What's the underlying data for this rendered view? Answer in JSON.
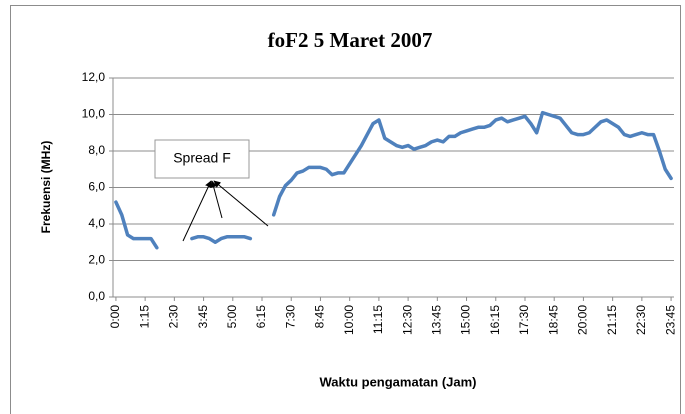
{
  "chart_data": {
    "type": "line",
    "title": "foF2 5 Maret 2007",
    "xlabel": "Waktu pengamatan (Jam)",
    "ylabel": "Frekuensi (MHz)",
    "annotation": "Spread F",
    "categories": [
      "0:00",
      null,
      null,
      null,
      null,
      "1:15",
      null,
      null,
      null,
      null,
      "2:30",
      null,
      null,
      null,
      null,
      "3:45",
      null,
      null,
      null,
      null,
      "5:00",
      null,
      null,
      null,
      null,
      "6:15",
      null,
      null,
      null,
      null,
      "7:30",
      null,
      null,
      null,
      null,
      "8:45",
      null,
      null,
      null,
      null,
      "10:00",
      null,
      null,
      null,
      null,
      "11:15",
      null,
      null,
      null,
      null,
      "12:30",
      null,
      null,
      null,
      null,
      "13:45",
      null,
      null,
      null,
      null,
      "15:00",
      null,
      null,
      null,
      null,
      "16:15",
      null,
      null,
      null,
      null,
      "17:30",
      null,
      null,
      null,
      null,
      "18:45",
      null,
      null,
      null,
      null,
      "20:00",
      null,
      null,
      null,
      null,
      "21:15",
      null,
      null,
      null,
      null,
      "22:30",
      null,
      null,
      null,
      null,
      "23:45"
    ],
    "series": [
      {
        "name": "foF2",
        "color": "#4f81bd",
        "values": [
          5.2,
          4.5,
          3.4,
          3.2,
          3.2,
          3.2,
          3.2,
          2.7,
          null,
          null,
          null,
          null,
          null,
          3.2,
          3.3,
          3.3,
          3.2,
          3.0,
          3.2,
          3.3,
          3.3,
          3.3,
          3.3,
          3.2,
          null,
          null,
          null,
          4.5,
          5.5,
          6.1,
          6.4,
          6.8,
          6.9,
          7.1,
          7.1,
          7.1,
          7.0,
          6.7,
          6.8,
          6.8,
          7.3,
          7.8,
          8.3,
          8.9,
          9.5,
          9.7,
          8.7,
          8.5,
          8.3,
          8.2,
          8.3,
          8.1,
          8.2,
          8.3,
          8.5,
          8.6,
          8.5,
          8.8,
          8.8,
          9.0,
          9.1,
          9.2,
          9.3,
          9.3,
          9.4,
          9.7,
          9.8,
          9.6,
          9.7,
          9.8,
          9.9,
          9.5,
          9.0,
          10.1,
          10.0,
          9.9,
          9.8,
          9.4,
          9.0,
          8.9,
          8.9,
          9.0,
          9.3,
          9.6,
          9.7,
          9.5,
          9.3,
          8.9,
          8.8,
          8.9,
          9.0,
          8.9,
          8.9,
          8.0,
          7.0,
          6.5
        ]
      }
    ],
    "ylim": [
      0,
      12
    ],
    "yticks": [
      {
        "value": 0,
        "label": "0,0"
      },
      {
        "value": 2,
        "label": "2,0"
      },
      {
        "value": 4,
        "label": "4,0"
      },
      {
        "value": 6,
        "label": "6,0"
      },
      {
        "value": 8,
        "label": "8,0"
      },
      {
        "value": 10,
        "label": "10,0"
      },
      {
        "value": 12,
        "label": "12,0"
      }
    ],
    "grid": true
  }
}
